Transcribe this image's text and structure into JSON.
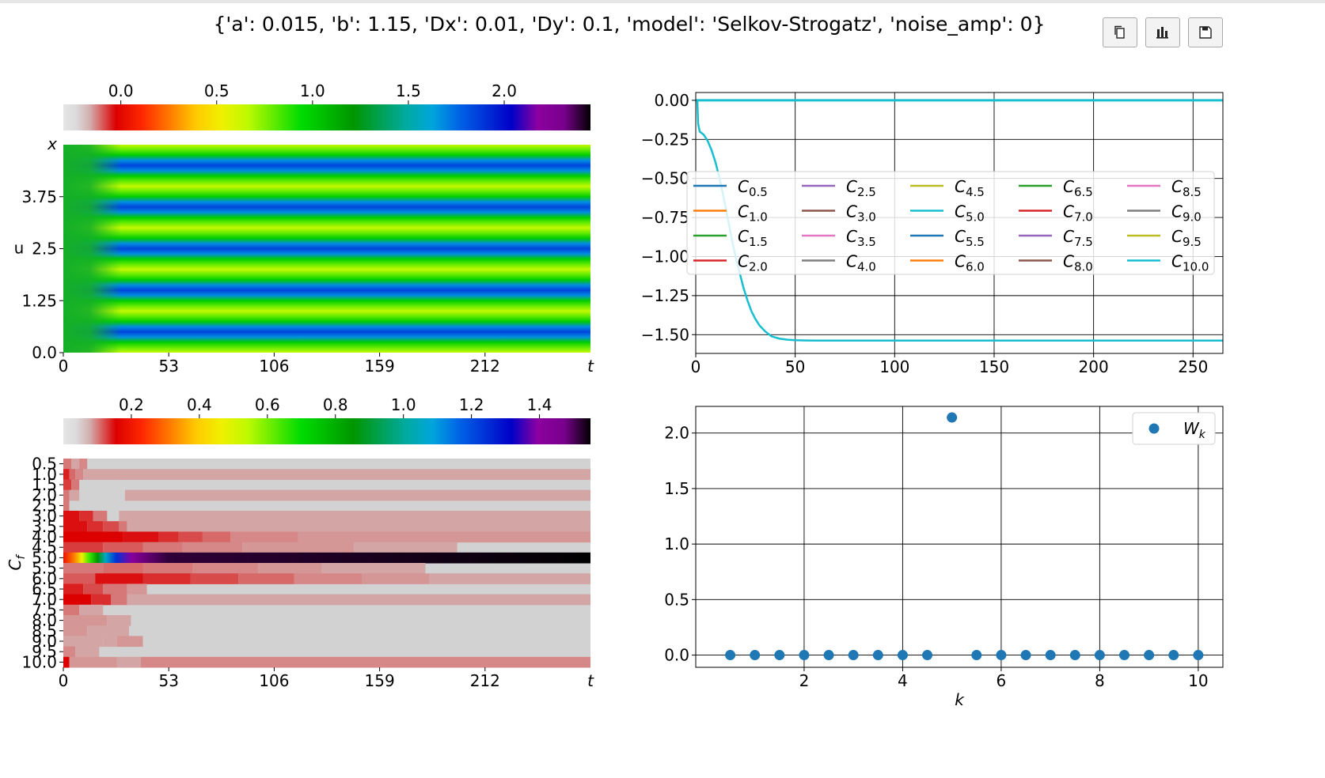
{
  "figure_title": "{'a': 0.015, 'b': 1.15, 'Dx': 0.01, 'Dy': 0.1, 'model': 'Selkov-Strogatz', 'noise_amp': 0}",
  "toolbar": [
    {
      "name": "copy-button",
      "icon": "copy-icon"
    },
    {
      "name": "chart-button",
      "icon": "bar-chart-icon"
    },
    {
      "name": "save-button",
      "icon": "save-icon"
    }
  ],
  "colors": {
    "line": "#17becf",
    "marker": "#1f77b4",
    "grid": "#000000"
  },
  "chart_data": [
    {
      "type": "heatmap",
      "name": "u-heatmap",
      "colormap": "nipy_spectral",
      "colorbar_ticks": [
        "0.0",
        "0.5",
        "1.0",
        "1.5",
        "2.0"
      ],
      "colorbar_range": [
        -0.3,
        2.45
      ],
      "ylabel": "u",
      "y_axis_name": "x",
      "x_axis_name": "t",
      "yticks": [
        "0.0",
        "1.25",
        "2.5",
        "3.75"
      ],
      "xticks": [
        "0",
        "53",
        "106",
        "159",
        "212"
      ],
      "xlim": [
        0,
        265
      ],
      "ylim": [
        0,
        5
      ],
      "n_stripes": 5,
      "stripe_values": {
        "low": 0.65,
        "mid": 1.0,
        "high": 1.85
      }
    },
    {
      "type": "heatmap",
      "name": "C-heatmap",
      "colormap": "nipy_spectral",
      "colorbar_ticks": [
        "0.2",
        "0.4",
        "0.6",
        "0.8",
        "1.0",
        "1.2",
        "1.4"
      ],
      "colorbar_range": [
        0.0,
        1.55
      ],
      "ylabel": "C_f",
      "x_axis_name": "t",
      "yticks": [
        "0.5",
        "1.0",
        "1.5",
        "2.0",
        "2.5",
        "3.0",
        "3.5",
        "4.0",
        "4.5",
        "5.0",
        "5.5",
        "6.0",
        "6.5",
        "7.0",
        "7.5",
        "8.0",
        "8.5",
        "9.0",
        "9.5",
        "10.0"
      ],
      "xticks": [
        "0",
        "53",
        "106",
        "159",
        "212"
      ],
      "xlim": [
        0,
        265
      ],
      "rows": [
        {
          "f": "0.5",
          "segments": [
            [
              0,
              0.06
            ],
            [
              2,
              0.06
            ],
            [
              4,
              0.03
            ],
            [
              8,
              0.05
            ],
            [
              12,
              0.0
            ]
          ]
        },
        {
          "f": "1.0",
          "segments": [
            [
              0,
              0.12
            ],
            [
              3,
              0.07
            ],
            [
              6,
              0.05
            ],
            [
              10,
              0.03
            ],
            [
              28,
              0.03
            ]
          ]
        },
        {
          "f": "1.5",
          "segments": [
            [
              0,
              0.1
            ],
            [
              4,
              0.06
            ],
            [
              8,
              0.0
            ]
          ]
        },
        {
          "f": "2.0",
          "segments": [
            [
              0,
              0.06
            ],
            [
              3,
              0.03
            ],
            [
              8,
              0.0
            ],
            [
              31,
              0.03
            ]
          ]
        },
        {
          "f": "2.5",
          "segments": [
            [
              0,
              0.06
            ],
            [
              3,
              0.0
            ]
          ]
        },
        {
          "f": "3.0",
          "segments": [
            [
              0,
              0.13
            ],
            [
              8,
              0.11
            ],
            [
              15,
              0.06
            ],
            [
              22,
              0.0
            ],
            [
              28,
              0.03
            ]
          ]
        },
        {
          "f": "3.5",
          "segments": [
            [
              0,
              0.13
            ],
            [
              12,
              0.11
            ],
            [
              20,
              0.09
            ],
            [
              28,
              0.06
            ],
            [
              32,
              0.03
            ]
          ]
        },
        {
          "f": "4.0",
          "segments": [
            [
              0,
              0.14
            ],
            [
              30,
              0.13
            ],
            [
              48,
              0.11
            ],
            [
              58,
              0.09
            ],
            [
              70,
              0.07
            ],
            [
              84,
              0.05
            ],
            [
              118,
              0.04
            ]
          ]
        },
        {
          "f": "4.5",
          "segments": [
            [
              0,
              0.1
            ],
            [
              20,
              0.08
            ],
            [
              40,
              0.06
            ],
            [
              60,
              0.05
            ],
            [
              90,
              0.04
            ],
            [
              146,
              0.03
            ],
            [
              198,
              0.0
            ]
          ]
        },
        {
          "f": "5.0",
          "segments": "spectrum"
        },
        {
          "f": "5.5",
          "segments": [
            [
              0,
              0.06
            ],
            [
              20,
              0.07
            ],
            [
              40,
              0.06
            ],
            [
              65,
              0.05
            ],
            [
              98,
              0.04
            ],
            [
              130,
              0.03
            ],
            [
              182,
              0.0
            ]
          ]
        },
        {
          "f": "6.0",
          "segments": [
            [
              0,
              0.08
            ],
            [
              16,
              0.13
            ],
            [
              40,
              0.11
            ],
            [
              64,
              0.09
            ],
            [
              88,
              0.07
            ],
            [
              116,
              0.05
            ],
            [
              150,
              0.04
            ],
            [
              184,
              0.03
            ]
          ]
        },
        {
          "f": "6.5",
          "segments": [
            [
              0,
              0.12
            ],
            [
              10,
              0.09
            ],
            [
              20,
              0.06
            ],
            [
              32,
              0.04
            ],
            [
              42,
              0.0
            ]
          ]
        },
        {
          "f": "7.0",
          "segments": [
            [
              0,
              0.14
            ],
            [
              14,
              0.11
            ],
            [
              24,
              0.06
            ],
            [
              32,
              0.03
            ]
          ]
        },
        {
          "f": "7.5",
          "segments": [
            [
              0,
              0.06
            ],
            [
              8,
              0.03
            ],
            [
              20,
              0.0
            ]
          ]
        },
        {
          "f": "8.0",
          "segments": [
            [
              0,
              0.04
            ],
            [
              22,
              0.03
            ],
            [
              34,
              0.0
            ]
          ]
        },
        {
          "f": "8.5",
          "segments": [
            [
              0,
              0.04
            ],
            [
              12,
              0.03
            ],
            [
              33,
              0.0
            ]
          ]
        },
        {
          "f": "9.0",
          "segments": [
            [
              0,
              0.03
            ],
            [
              20,
              0.03
            ],
            [
              27,
              0.04
            ],
            [
              40,
              0.0
            ]
          ]
        },
        {
          "f": "9.5",
          "segments": [
            [
              0,
              0.05
            ],
            [
              6,
              0.03
            ],
            [
              18,
              0.0
            ]
          ]
        },
        {
          "f": "10.0",
          "segments": [
            [
              0,
              0.14
            ],
            [
              3,
              0.04
            ],
            [
              27,
              0.03
            ],
            [
              39,
              0.05
            ]
          ]
        }
      ]
    },
    {
      "type": "line",
      "name": "C-timeseries",
      "xlim": [
        0,
        265
      ],
      "ylim": [
        -1.62,
        0.05
      ],
      "xticks": [
        0,
        50,
        100,
        150,
        200,
        250
      ],
      "yticks": [
        0.0,
        -0.25,
        -0.5,
        -0.75,
        -1.0,
        -1.25,
        -1.5
      ],
      "ytick_labels": [
        "0.00",
        "−0.25",
        "−0.50",
        "−0.75",
        "−1.00",
        "−1.25",
        "−1.50"
      ],
      "grid": true,
      "legend_position": "center",
      "legend_columns": 5,
      "legend": [
        {
          "sub": "0.5",
          "color": "#1f77b4"
        },
        {
          "sub": "1.0",
          "color": "#ff7f0e"
        },
        {
          "sub": "1.5",
          "color": "#2ca02c"
        },
        {
          "sub": "2.0",
          "color": "#d62728"
        },
        {
          "sub": "2.5",
          "color": "#9467bd"
        },
        {
          "sub": "3.0",
          "color": "#8c564b"
        },
        {
          "sub": "3.5",
          "color": "#e377c2"
        },
        {
          "sub": "4.0",
          "color": "#7f7f7f"
        },
        {
          "sub": "4.5",
          "color": "#bcbd22"
        },
        {
          "sub": "5.0",
          "color": "#17becf"
        },
        {
          "sub": "5.5",
          "color": "#1f77b4"
        },
        {
          "sub": "6.0",
          "color": "#ff7f0e"
        },
        {
          "sub": "6.5",
          "color": "#2ca02c"
        },
        {
          "sub": "7.0",
          "color": "#d62728"
        },
        {
          "sub": "7.5",
          "color": "#9467bd"
        },
        {
          "sub": "8.0",
          "color": "#8c564b"
        },
        {
          "sub": "8.5",
          "color": "#e377c2"
        },
        {
          "sub": "9.0",
          "color": "#7f7f7f"
        },
        {
          "sub": "9.5",
          "color": "#bcbd22"
        },
        {
          "sub": "10.0",
          "color": "#17becf"
        }
      ],
      "series_zero": {
        "x": [
          0,
          265
        ],
        "y": [
          0,
          0
        ]
      },
      "series_c5": {
        "x": [
          0,
          0.8,
          1.2,
          2,
          4,
          6,
          8,
          10,
          12,
          14,
          16,
          18,
          20,
          22,
          24,
          26,
          28,
          30,
          32,
          35,
          38,
          42,
          46,
          50,
          55,
          60,
          70,
          100,
          150,
          200,
          265
        ],
        "y": [
          0,
          0,
          -0.15,
          -0.2,
          -0.22,
          -0.26,
          -0.32,
          -0.4,
          -0.5,
          -0.62,
          -0.75,
          -0.88,
          -1.0,
          -1.1,
          -1.2,
          -1.28,
          -1.35,
          -1.4,
          -1.44,
          -1.48,
          -1.51,
          -1.525,
          -1.532,
          -1.535,
          -1.537,
          -1.538,
          -1.538,
          -1.538,
          -1.538,
          -1.538,
          -1.538
        ]
      }
    },
    {
      "type": "scatter",
      "name": "W-spectrum",
      "xlabel": "k",
      "legend": "W_k",
      "legend_position": "upper right",
      "grid": true,
      "xlim": [
        -0.2,
        10.5
      ],
      "ylim": [
        -0.11,
        2.24
      ],
      "xticks": [
        2,
        4,
        6,
        8,
        10
      ],
      "yticks": [
        0.0,
        0.5,
        1.0,
        1.5,
        2.0
      ],
      "ytick_labels": [
        "0.0",
        "0.5",
        "1.0",
        "1.5",
        "2.0"
      ],
      "x": [
        0.5,
        1.0,
        1.5,
        2.0,
        2.5,
        3.0,
        3.5,
        4.0,
        4.5,
        5.0,
        5.5,
        6.0,
        6.5,
        7.0,
        7.5,
        8.0,
        8.5,
        9.0,
        9.5,
        10.0
      ],
      "y": [
        0,
        0,
        0,
        0,
        0,
        0,
        0,
        0,
        0,
        2.14,
        0,
        0,
        0,
        0,
        0,
        0,
        0,
        0,
        0,
        0
      ]
    }
  ]
}
